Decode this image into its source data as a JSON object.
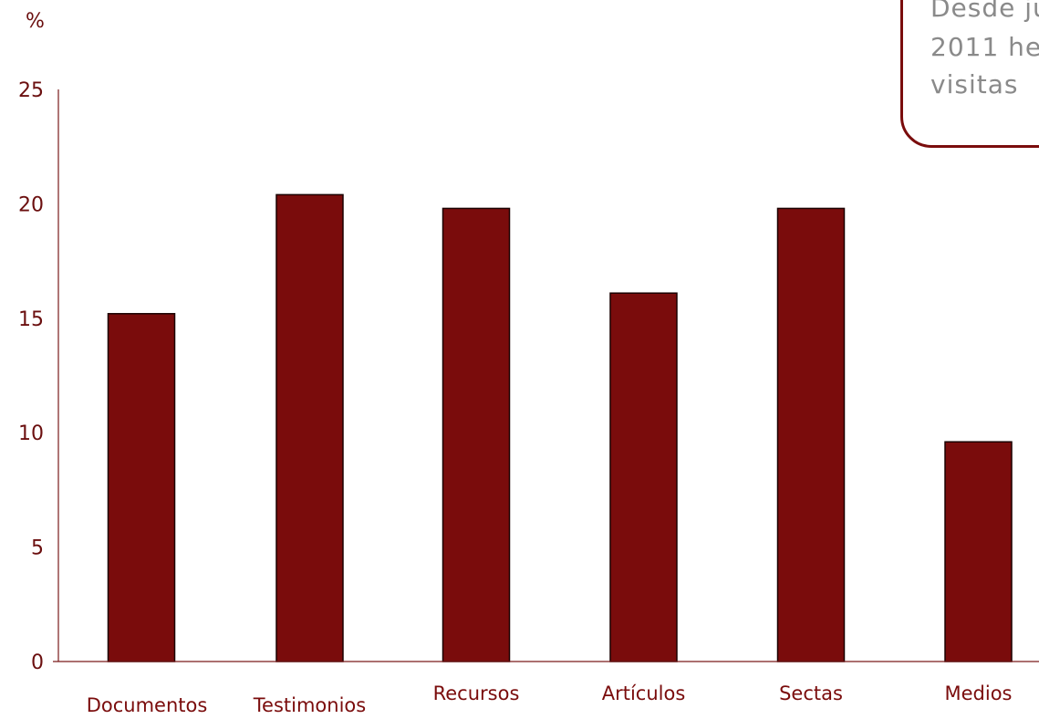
{
  "chart_data": {
    "type": "bar",
    "ylabel": "%",
    "ylim": [
      0,
      25
    ],
    "yticks": [
      0,
      5,
      10,
      15,
      20,
      25
    ],
    "categories": [
      "Documentos",
      "Testimonios",
      "Recursos",
      "Artículos",
      "Sectas",
      "Medios"
    ],
    "values": [
      15.2,
      20.4,
      19.8,
      16.1,
      19.8,
      9.6
    ],
    "bar_color": "#7a0c0c",
    "axis_color": "#7a1a1a",
    "grid": false,
    "legend": "none"
  },
  "annotation": {
    "lines": [
      "Desde ju",
      "2011 he",
      "visitas"
    ],
    "text_color": "#8a8a8a",
    "border_color": "#7a0c0c"
  }
}
